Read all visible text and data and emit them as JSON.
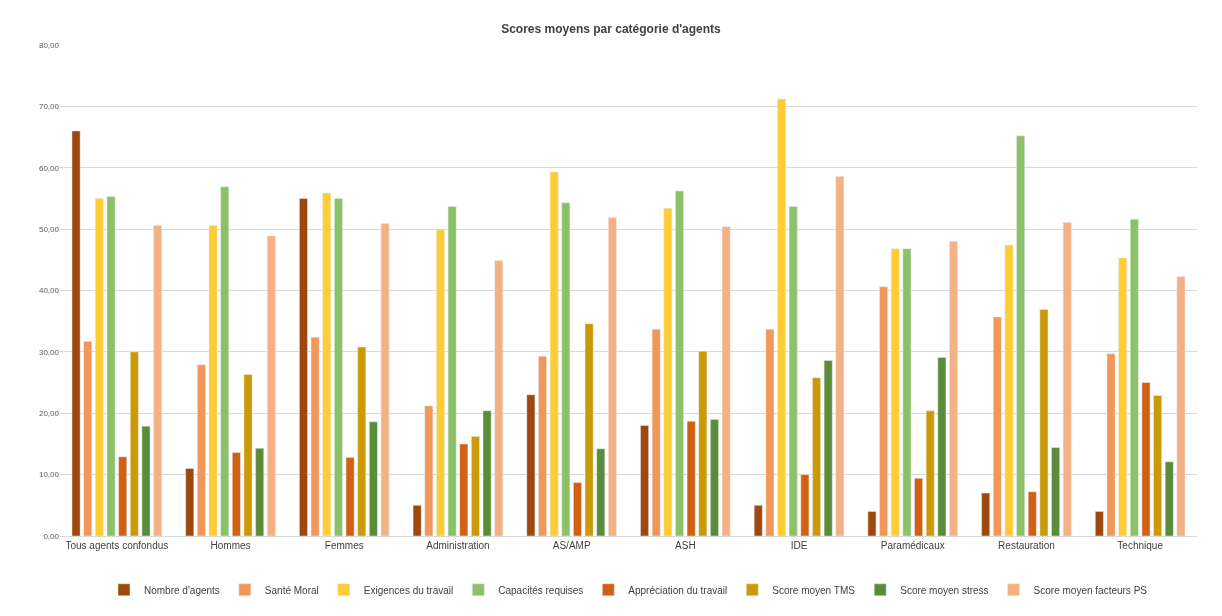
{
  "chart_data": {
    "type": "bar",
    "title": "Scores moyens par catégorie d'agents",
    "categories": [
      "Tous agents confondus",
      "Hommes",
      "Femmes",
      "Administration",
      "AS/AMP",
      "ASH",
      "IDE",
      "Paramédicaux",
      "Restauration",
      "Technique"
    ],
    "series": [
      {
        "name": "Nombre d'agents",
        "color": "#9e480e",
        "values": [
          66,
          11,
          55,
          5,
          23,
          18,
          5,
          4,
          7,
          4
        ]
      },
      {
        "name": "Santé Moral",
        "color": "#f1975a",
        "values": [
          31.7,
          27.9,
          32.4,
          21.2,
          29.3,
          33.7,
          33.7,
          40.6,
          35.7,
          29.7
        ]
      },
      {
        "name": "Exigences du travail",
        "color": "#ffcd33",
        "values": [
          55,
          50.6,
          55.9,
          50,
          59.3,
          53.4,
          71.2,
          46.8,
          47.4,
          45.3
        ]
      },
      {
        "name": "Capacités requises",
        "color": "#8cc168",
        "values": [
          55.3,
          56.9,
          55,
          53.7,
          54.3,
          56.2,
          53.7,
          46.8,
          65.2,
          51.6
        ]
      },
      {
        "name": "Appréciation du travail",
        "color": "#d26012",
        "values": [
          12.9,
          13.6,
          12.8,
          15,
          8.7,
          18.7,
          10,
          9.4,
          7.2,
          25
        ]
      },
      {
        "name": "Score moyen TMS",
        "color": "#cc9a06",
        "values": [
          30,
          26.3,
          30.8,
          16.2,
          34.6,
          30.1,
          25.8,
          20.4,
          36.9,
          22.9
        ]
      },
      {
        "name": "Score moyen stress",
        "color": "#5b8c3a",
        "values": [
          17.9,
          14.3,
          18.6,
          20.4,
          14.2,
          19,
          28.6,
          29.1,
          14.4,
          12.1
        ]
      },
      {
        "name": "Score moyen facteurs PS",
        "color": "#f4b183",
        "values": [
          50.6,
          48.9,
          50.9,
          44.9,
          51.9,
          50.4,
          58.6,
          48,
          51.1,
          42.3
        ]
      }
    ],
    "ylim": [
      0,
      80
    ],
    "yticks": [
      {
        "value": 0,
        "label": "0,00"
      },
      {
        "value": 10,
        "label": "10,00"
      },
      {
        "value": 20,
        "label": "20,00"
      },
      {
        "value": 30,
        "label": "30,00"
      },
      {
        "value": 40,
        "label": "40,00"
      },
      {
        "value": 50,
        "label": "50,00"
      },
      {
        "value": 60,
        "label": "60,00"
      },
      {
        "value": 70,
        "label": "70,00"
      },
      {
        "value": 80,
        "label": "80,00"
      }
    ],
    "grid": "y",
    "legend": "bottom"
  }
}
